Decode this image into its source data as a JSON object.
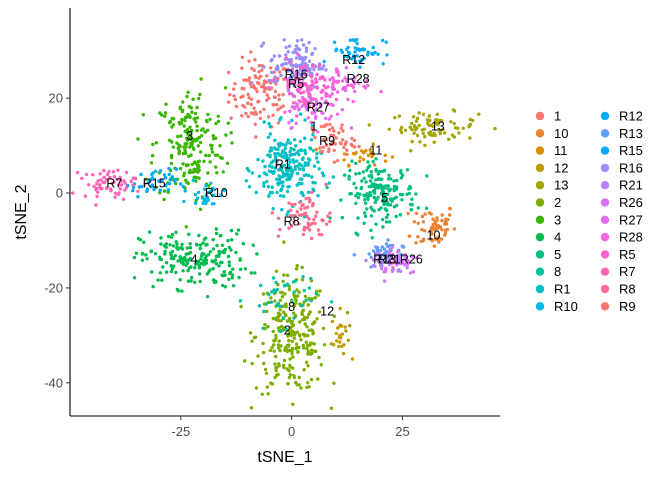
{
  "chart_data": {
    "type": "scatter",
    "title": "",
    "xlabel": "tSNE_1",
    "ylabel": "tSNE_2",
    "xlim": [
      -50,
      47
    ],
    "ylim": [
      -47,
      39
    ],
    "xticks": [
      -25,
      0,
      25
    ],
    "yticks": [
      -40,
      -20,
      0,
      20
    ],
    "xtick_labels": [
      "-25",
      "0",
      "25"
    ],
    "ytick_labels": [
      "-40",
      "-20",
      "0",
      "20"
    ],
    "grid": false,
    "legend_position": "right",
    "legend_columns": 2,
    "clusters": [
      {
        "name": "1",
        "color": "#F8766D",
        "label_at": [
          5,
          14
        ],
        "center": [
          -7,
          21
        ],
        "spread": [
          3.5,
          3.5
        ],
        "n": 110
      },
      {
        "name": "10",
        "color": "#EA8331",
        "label_at": [
          32,
          -9
        ],
        "center": [
          32,
          -7
        ],
        "spread": [
          2.5,
          2.5
        ],
        "n": 60
      },
      {
        "name": "11",
        "color": "#D89000",
        "label_at": [
          19,
          9
        ],
        "center": [
          16,
          8
        ],
        "spread": [
          3,
          1
        ],
        "n": 25
      },
      {
        "name": "12",
        "color": "#C09B00",
        "label_at": [
          8,
          -25
        ],
        "center": [
          11,
          -30
        ],
        "spread": [
          1,
          2.5
        ],
        "n": 25
      },
      {
        "name": "13",
        "color": "#A3A500",
        "label_at": [
          33,
          14
        ],
        "center": [
          32,
          14
        ],
        "spread": [
          5,
          1.5
        ],
        "n": 80
      },
      {
        "name": "2",
        "color": "#7CAE00",
        "label_at": [
          -1,
          -29
        ],
        "center": [
          0,
          -30
        ],
        "spread": [
          4,
          6
        ],
        "n": 260
      },
      {
        "name": "3",
        "color": "#39B600",
        "label_at": [
          -23,
          12
        ],
        "center": [
          -23,
          10
        ],
        "spread": [
          4,
          6
        ],
        "n": 200
      },
      {
        "name": "4",
        "color": "#00BB4E",
        "label_at": [
          -22,
          -14
        ],
        "center": [
          -22,
          -14
        ],
        "spread": [
          6,
          3
        ],
        "n": 200
      },
      {
        "name": "5",
        "color": "#00BF7D",
        "label_at": [
          21,
          -1
        ],
        "center": [
          20,
          0
        ],
        "spread": [
          4,
          3
        ],
        "n": 180
      },
      {
        "name": "8",
        "color": "#00C1A3",
        "label_at": [
          0,
          -24
        ],
        "center": [
          -2,
          -22
        ],
        "spread": [
          4,
          3
        ],
        "n": 40
      },
      {
        "name": "R1",
        "color": "#00BFC4",
        "label_at": [
          -2,
          6
        ],
        "center": [
          -1,
          5
        ],
        "spread": [
          3.5,
          4
        ],
        "n": 220
      },
      {
        "name": "R10",
        "color": "#00B8E5",
        "label_at": [
          -17,
          0
        ],
        "center": [
          -19,
          0
        ],
        "spread": [
          2,
          1.5
        ],
        "n": 30
      },
      {
        "name": "R12",
        "color": "#00ABFD",
        "label_at": [
          14,
          28
        ],
        "center": [
          15,
          30
        ],
        "spread": [
          3,
          1.5
        ],
        "n": 50
      },
      {
        "name": "R13",
        "color": "#619CFF",
        "label_at": [
          21,
          -14
        ],
        "center": [
          20,
          -13
        ],
        "spread": [
          2.5,
          1.5
        ],
        "n": 40
      },
      {
        "name": "R15",
        "color": "#00A9FF",
        "label_at": [
          -31,
          2
        ],
        "center": [
          -31,
          2
        ],
        "spread": [
          2.5,
          1.5
        ],
        "n": 40
      },
      {
        "name": "R16",
        "color": "#9590FF",
        "label_at": [
          1,
          25
        ],
        "center": [
          1,
          27
        ],
        "spread": [
          3,
          2.5
        ],
        "n": 120
      },
      {
        "name": "R21",
        "color": "#B983FF",
        "label_at": [
          22,
          -14
        ],
        "center": [
          22,
          -15
        ],
        "spread": [
          2,
          1.5
        ],
        "n": 30
      },
      {
        "name": "R26",
        "color": "#DB72FB",
        "label_at": [
          27,
          -14
        ],
        "center": [
          24,
          -14
        ],
        "spread": [
          2.5,
          1.5
        ],
        "n": 40
      },
      {
        "name": "R27",
        "color": "#E76BF3",
        "label_at": [
          6,
          18
        ],
        "center": [
          5,
          18
        ],
        "spread": [
          3,
          2
        ],
        "n": 60
      },
      {
        "name": "R28",
        "color": "#F564E3",
        "label_at": [
          15,
          24
        ],
        "center": [
          12,
          23
        ],
        "spread": [
          3,
          2
        ],
        "n": 50
      },
      {
        "name": "R5",
        "color": "#FF61CC",
        "label_at": [
          1,
          23
        ],
        "center": [
          3,
          23
        ],
        "spread": [
          3,
          2.5
        ],
        "n": 90
      },
      {
        "name": "R7",
        "color": "#FF63B6",
        "label_at": [
          -40,
          2
        ],
        "center": [
          -41,
          2
        ],
        "spread": [
          3,
          1.5
        ],
        "n": 60
      },
      {
        "name": "R8",
        "color": "#FF6C90",
        "label_at": [
          0,
          -6
        ],
        "center": [
          3,
          -5
        ],
        "spread": [
          3,
          2.5
        ],
        "n": 60
      },
      {
        "name": "R9",
        "color": "#F8766D",
        "label_at": [
          8,
          11
        ],
        "center": [
          9,
          11
        ],
        "spread": [
          2.5,
          2
        ],
        "n": 50
      }
    ]
  }
}
